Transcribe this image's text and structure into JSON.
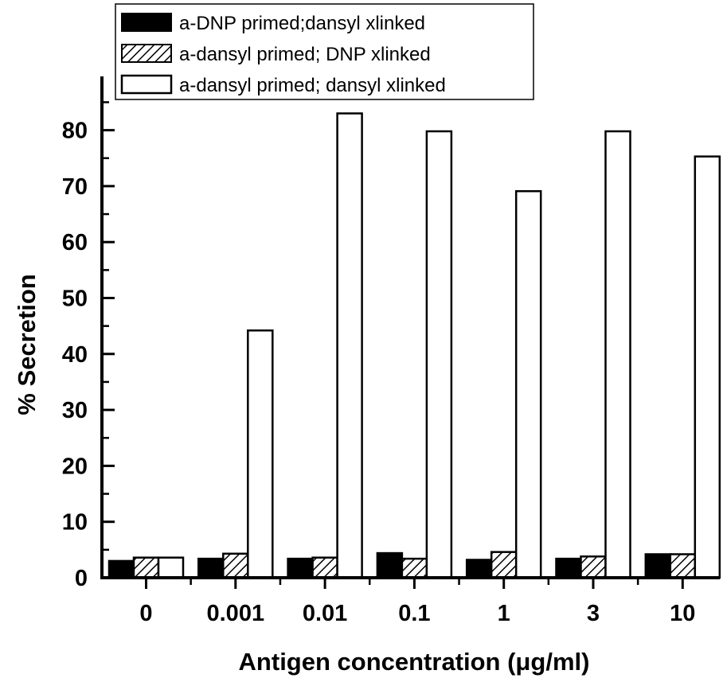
{
  "chart_data": {
    "type": "bar",
    "title": "",
    "xlabel": "Antigen concentration (μg/ml)",
    "ylabel": "% Secretion",
    "categories": [
      "0",
      "0.001",
      "0.01",
      "0.1",
      "1",
      "3",
      "10"
    ],
    "ylim": [
      0,
      93
    ],
    "yticks": [
      0,
      10,
      20,
      30,
      40,
      50,
      60,
      70,
      80
    ],
    "legend_position": "top",
    "series": [
      {
        "name": "a-DNP primed;dansyl xlinked",
        "fill": "solid",
        "color": "#000000",
        "values": [
          3.0,
          3.4,
          3.4,
          4.4,
          3.2,
          3.4,
          4.2
        ]
      },
      {
        "name": "a-dansyl primed; DNP xlinked",
        "fill": "hatched",
        "color": "#000000",
        "values": [
          3.6,
          4.3,
          3.6,
          3.4,
          4.6,
          3.8,
          4.2
        ]
      },
      {
        "name": "a-dansyl primed; dansyl xlinked",
        "fill": "open",
        "color": "#ffffff",
        "values": [
          3.6,
          44.2,
          83.0,
          79.8,
          69.1,
          79.8,
          75.3
        ]
      }
    ]
  }
}
